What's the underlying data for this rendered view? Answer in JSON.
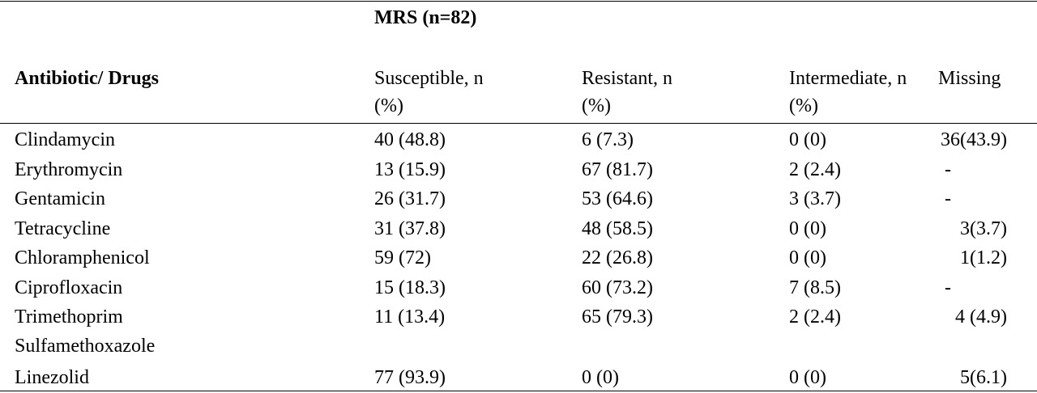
{
  "table": {
    "group_header": "MRS (n=82)",
    "columns": [
      "Antibiotic/ Drugs",
      "Susceptible, n (%)",
      "Resistant, n (%)",
      "Intermediate, n (%)",
      "Missing"
    ],
    "rows": [
      [
        "Clindamycin",
        "40 (48.8)",
        "6 (7.3)",
        "0 (0)",
        "36(43.9)"
      ],
      [
        "Erythromycin",
        "13 (15.9)",
        "67 (81.7)",
        "2 (2.4)",
        "-"
      ],
      [
        "Gentamicin",
        "26 (31.7)",
        "53 (64.6)",
        "3 (3.7)",
        "-"
      ],
      [
        "Tetracycline",
        "31 (37.8)",
        "48 (58.5)",
        "0 (0)",
        "3(3.7)"
      ],
      [
        "Chloramphenicol",
        "59 (72)",
        "22 (26.8)",
        "0 (0)",
        "1(1.2)"
      ],
      [
        "Ciprofloxacin",
        "15 (18.3)",
        "60 (73.2)",
        "7 (8.5)",
        "-"
      ],
      [
        "Trimethoprim Sulfamethoxazole",
        "11 (13.4)",
        "65 (79.3)",
        "2 (2.4)",
        "4 (4.9)"
      ],
      [
        "Linezolid",
        "77 (93.9)",
        "0 (0)",
        "0 (0)",
        "5(6.1)"
      ]
    ]
  }
}
